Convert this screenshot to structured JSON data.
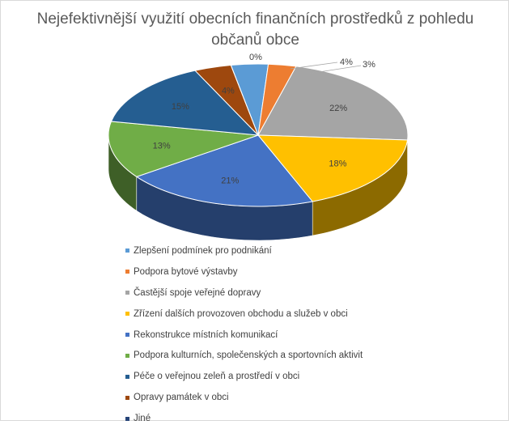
{
  "chart_data": {
    "type": "pie",
    "title": "Nejefektivnější využití obecních finančních prostředků z pohledu občanů obce",
    "legend_position": "bottom",
    "slices": [
      {
        "name": "Zlepšení podmínek pro podnikání",
        "value": 4,
        "label": "4%",
        "color": "#5b9bd5"
      },
      {
        "name": "Podpora bytové výstavby",
        "value": 3,
        "label": "3%",
        "color": "#ed7d31"
      },
      {
        "name": "Častější spoje veřejné dopravy",
        "value": 22,
        "label": "22%",
        "color": "#a5a5a5"
      },
      {
        "name": "Zřízení dalších provozoven obchodu a služeb v obci",
        "value": 18,
        "label": "18%",
        "color": "#ffc000"
      },
      {
        "name": "Rekonstrukce místních komunikací",
        "value": 21,
        "label": "21%",
        "color": "#4472c4"
      },
      {
        "name": "Podpora kulturních, společenských a sportovních aktivit",
        "value": 13,
        "label": "13%",
        "color": "#70ad47"
      },
      {
        "name": "Péče o veřejnou zeleň a prostředí v obci",
        "value": 15,
        "label": "15%",
        "color": "#255e91"
      },
      {
        "name": "Opravy památek v obci",
        "value": 4,
        "label": "4%",
        "color": "#9e480e"
      },
      {
        "name": "Jiné",
        "value": 0,
        "label": "0%",
        "color": "#264478"
      }
    ]
  }
}
